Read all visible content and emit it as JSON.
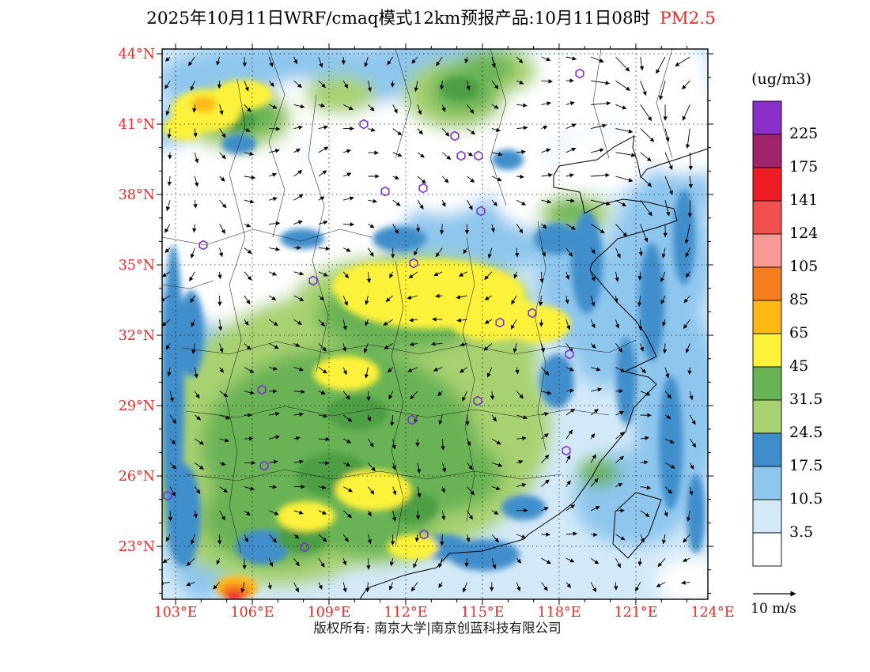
{
  "title": {
    "text": "2025年10月11日WRF/cmaq模式12km预报产品:10月11日08时",
    "pollutant": "PM2.5",
    "pollutant_color": "#ee2c2c"
  },
  "axes": {
    "lat_labels": [
      "44°N",
      "41°N",
      "38°N",
      "35°N",
      "32°N",
      "29°N",
      "26°N",
      "23°N"
    ],
    "lon_labels": [
      "103°E",
      "106°E",
      "109°E",
      "112°E",
      "115°E",
      "118°E",
      "121°E",
      "124°E"
    ],
    "label_color": "#ee2c2c"
  },
  "colorbar": {
    "unit": "(ug/m3)",
    "tick_labels": [
      "225",
      "175",
      "141",
      "124",
      "105",
      "85",
      "65",
      "45",
      "31.5",
      "24.5",
      "17.5",
      "10.5",
      "3.5"
    ],
    "colors_top_to_bottom": [
      "#8b2fc9",
      "#a1246b",
      "#ee1c25",
      "#f0504e",
      "#f79a96",
      "#f57e20",
      "#fcb814",
      "#fdf23a",
      "#69b357",
      "#a8d271",
      "#3f8ecb",
      "#8ec6ee",
      "#d3e9f8",
      "#ffffff"
    ]
  },
  "wind_legend": {
    "label": "10 m/s"
  },
  "footer": "版权所有: 南京大学|南京创蓝科技有限公司",
  "stations": [
    [
      733,
      93
    ],
    [
      460,
      157
    ],
    [
      575,
      172
    ],
    [
      583,
      197
    ],
    [
      605,
      197
    ],
    [
      535,
      238
    ],
    [
      487,
      242
    ],
    [
      608,
      267
    ],
    [
      257,
      310
    ],
    [
      523,
      333
    ],
    [
      396,
      355
    ],
    [
      673,
      396
    ],
    [
      632,
      408
    ],
    [
      720,
      448
    ],
    [
      331,
      493
    ],
    [
      604,
      507
    ],
    [
      521,
      531
    ],
    [
      716,
      570
    ],
    [
      334,
      589
    ],
    [
      212,
      627
    ],
    [
      536,
      676
    ],
    [
      385,
      692
    ]
  ],
  "chart_data": {
    "type": "heatmap",
    "title": "2025年10月11日WRF/cmaq模式12km预报产品:10月11日08时 PM2.5",
    "variable": "PM2.5",
    "units": "ug/m3",
    "model": "WRF/cmaq 12km",
    "lon_ticks": [
      103,
      106,
      109,
      112,
      115,
      118,
      121,
      124
    ],
    "lat_ticks": [
      23,
      26,
      29,
      32,
      35,
      38,
      41,
      44
    ],
    "contour_levels": [
      3.5,
      10.5,
      17.5,
      24.5,
      31.5,
      45,
      65,
      85,
      105,
      124,
      141,
      175,
      225
    ],
    "palette_low_to_high": [
      "#ffffff",
      "#d3e9f8",
      "#8ec6ee",
      "#3f8ecb",
      "#a8d271",
      "#69b357",
      "#fdf23a",
      "#fcb814",
      "#f57e20",
      "#f79a96",
      "#f0504e",
      "#ee1c25",
      "#a1246b",
      "#8b2fc9"
    ],
    "overlays": [
      "wind vectors",
      "province boundaries",
      "coastline",
      "station markers"
    ],
    "wind_reference_speed": "10 m/s",
    "notable_regions": [
      {
        "region": "central China (31-35N, 110-117E)",
        "pm25": "45-65 ug/m3 (yellow band)"
      },
      {
        "region": "southern China land",
        "pm25": "24.5-45 ug/m3 (green)"
      },
      {
        "region": "northwest / north clean areas",
        "pm25": "< 3.5 ug/m3 (white)"
      },
      {
        "region": "east China seas",
        "pm25": "3.5-24.5 ug/m3 (blues)"
      },
      {
        "region": "far southwest corner spot",
        "pm25": "85-141 ug/m3 (orange/red)"
      }
    ]
  }
}
